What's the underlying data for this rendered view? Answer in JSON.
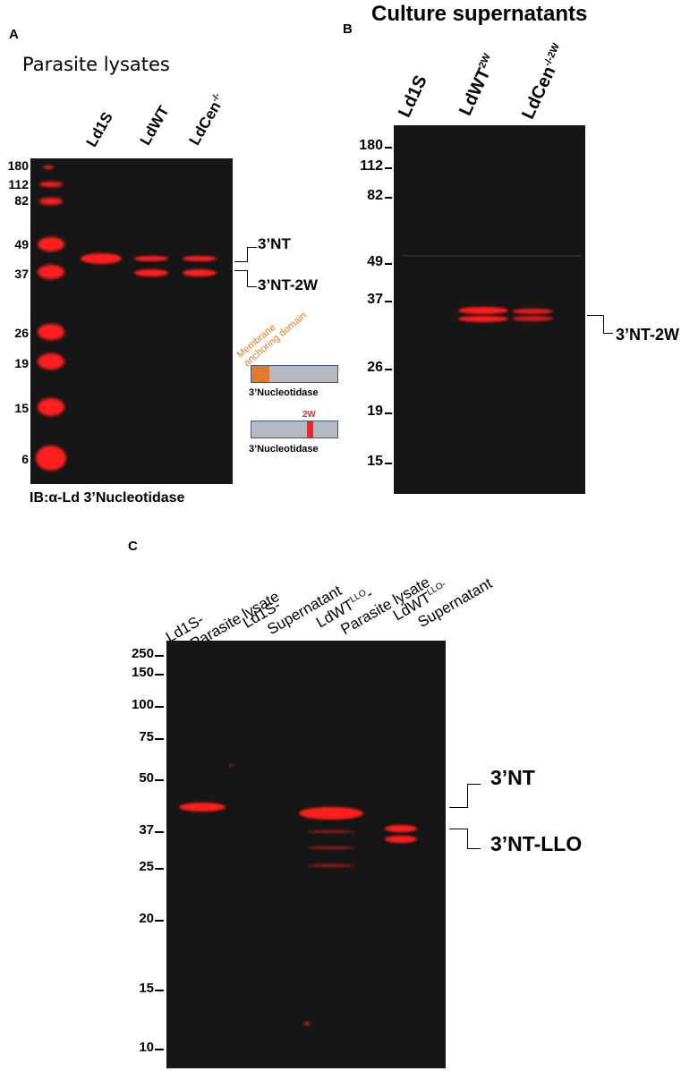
{
  "panel_a": {
    "letter": "A",
    "title": "Parasite lysates",
    "lanes": [
      "Ld1S",
      "LdWT",
      "LdCen"
    ],
    "lane3_sup": "-/-",
    "markers": [
      "180",
      "112",
      "82",
      "49",
      "37",
      "26",
      "19",
      "15",
      "6"
    ],
    "band_labels": [
      "3’NT",
      "3’NT-2W"
    ],
    "footer": "IB:α-Ld 3’Nucleotidase",
    "schematic": {
      "domain_label_line1": "Membrane",
      "domain_label_line2": "anchoring domain",
      "label_1": "3’Nucleotidase",
      "mutation_label": "2W",
      "label_2": "3’Nucleotidase",
      "colors": {
        "anchor": "#e07a2e",
        "mutation": "#ff2020",
        "protein": "#b4b8c0"
      }
    }
  },
  "panel_b": {
    "letter": "B",
    "title": "Culture supernatants",
    "lanes": [
      "Ld1S",
      "LdWT",
      "LdCen"
    ],
    "lane2_sup": "2W",
    "lane3_sup": "-/-2W",
    "markers": [
      "180",
      "112",
      "82",
      "49",
      "37",
      "26",
      "19",
      "15"
    ],
    "band_label": "3’NT-2W"
  },
  "panel_c": {
    "letter": "C",
    "lane_labels": [
      {
        "line1": "Ld1S-",
        "line2": "Parasite lysate"
      },
      {
        "line1": "Ld1S-",
        "line2": "Supernatant"
      },
      {
        "line1": "LdWT",
        "sup": "LLO",
        "tail": "-",
        "line2": "Parasite lysate"
      },
      {
        "line1": "LdWT",
        "sup": "LLO-",
        "line2": "Supernatant"
      }
    ],
    "markers": [
      "250",
      "150",
      "100",
      "75",
      "50",
      "37",
      "25",
      "20",
      "15",
      "10"
    ],
    "band_labels": [
      "3’NT",
      "3’NT-LLO"
    ]
  },
  "colors": {
    "band": "#ff1d1d",
    "gel": "#161616"
  }
}
